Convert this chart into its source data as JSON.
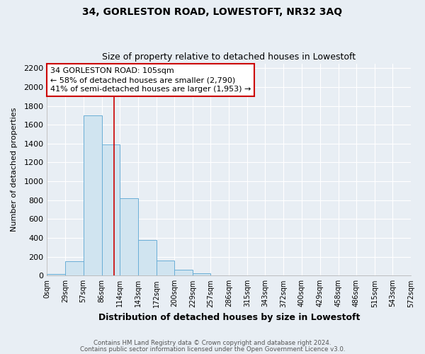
{
  "title": "34, GORLESTON ROAD, LOWESTOFT, NR32 3AQ",
  "subtitle": "Size of property relative to detached houses in Lowestoft",
  "xlabel": "Distribution of detached houses by size in Lowestoft",
  "ylabel": "Number of detached properties",
  "bar_edges": [
    0,
    29,
    57,
    86,
    114,
    143,
    172,
    200,
    229,
    257,
    286,
    315,
    343,
    372,
    400,
    429,
    458,
    486,
    515,
    543,
    572
  ],
  "bar_heights": [
    15,
    150,
    1700,
    1390,
    820,
    380,
    160,
    60,
    25,
    0,
    0,
    0,
    0,
    0,
    0,
    0,
    0,
    0,
    0,
    0
  ],
  "bar_color": "#d0e4f0",
  "bar_edge_color": "#6aaed6",
  "property_size": 105,
  "vline_color": "#cc0000",
  "annotation_line1": "34 GORLESTON ROAD: 105sqm",
  "annotation_line2": "← 58% of detached houses are smaller (2,790)",
  "annotation_line3": "41% of semi-detached houses are larger (1,953) →",
  "annotation_box_color": "#ffffff",
  "annotation_box_edge_color": "#cc0000",
  "ylim": [
    0,
    2250
  ],
  "yticks": [
    0,
    200,
    400,
    600,
    800,
    1000,
    1200,
    1400,
    1600,
    1800,
    2000,
    2200
  ],
  "footer1": "Contains HM Land Registry data © Crown copyright and database right 2024.",
  "footer2": "Contains public sector information licensed under the Open Government Licence v3.0.",
  "bg_color": "#e8eef4",
  "plot_bg_color": "#e8eef4",
  "grid_color": "#ffffff",
  "title_fontsize": 10,
  "subtitle_fontsize": 9
}
